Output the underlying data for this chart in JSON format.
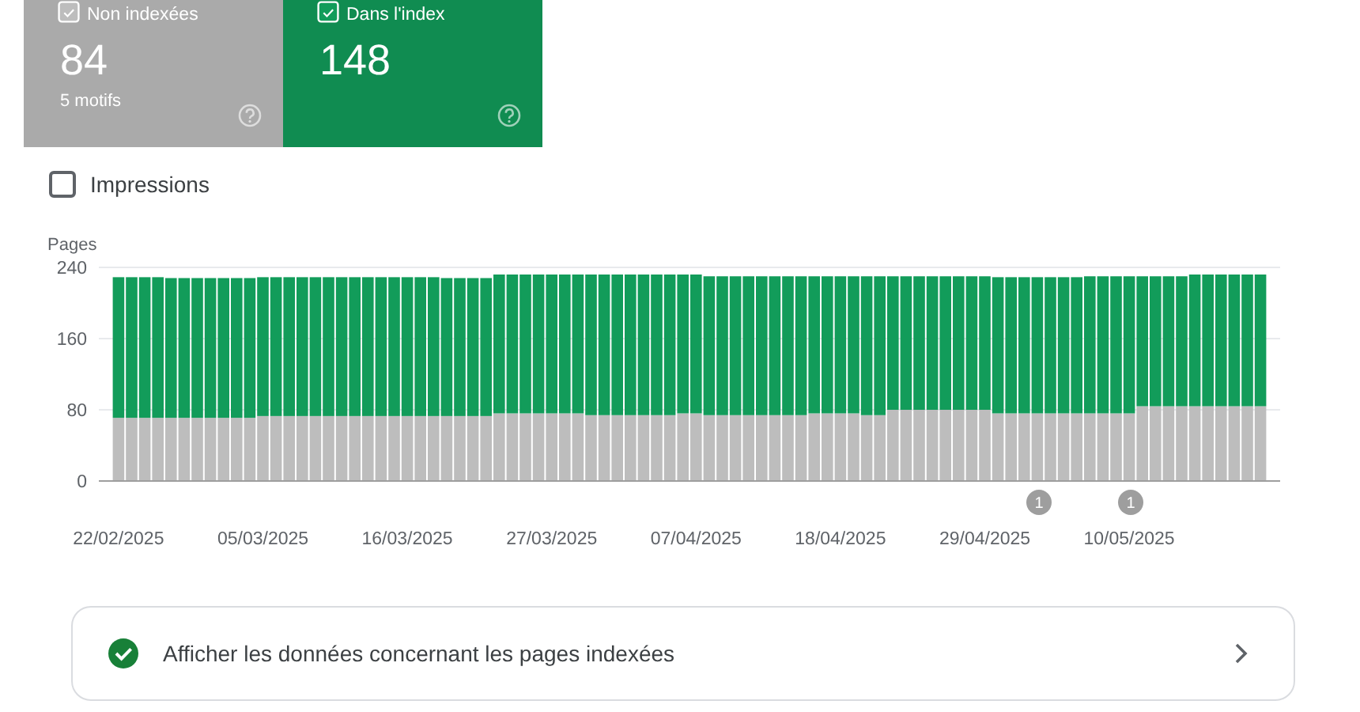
{
  "chart_data": {
    "type": "bar",
    "stacked": true,
    "ylabel": "Pages",
    "ylim": [
      0,
      240
    ],
    "yticks": [
      0,
      80,
      160,
      240
    ],
    "grid": "y",
    "legend": "top left",
    "x": [
      "2025-02-22",
      "2025-02-23",
      "2025-02-24",
      "2025-02-25",
      "2025-02-26",
      "2025-02-27",
      "2025-02-28",
      "2025-03-01",
      "2025-03-02",
      "2025-03-03",
      "2025-03-04",
      "2025-03-05",
      "2025-03-06",
      "2025-03-07",
      "2025-03-08",
      "2025-03-09",
      "2025-03-10",
      "2025-03-11",
      "2025-03-12",
      "2025-03-13",
      "2025-03-14",
      "2025-03-15",
      "2025-03-16",
      "2025-03-17",
      "2025-03-18",
      "2025-03-19",
      "2025-03-20",
      "2025-03-21",
      "2025-03-22",
      "2025-03-23",
      "2025-03-24",
      "2025-03-25",
      "2025-03-26",
      "2025-03-27",
      "2025-03-28",
      "2025-03-29",
      "2025-03-30",
      "2025-03-31",
      "2025-04-01",
      "2025-04-02",
      "2025-04-03",
      "2025-04-04",
      "2025-04-05",
      "2025-04-06",
      "2025-04-07",
      "2025-04-08",
      "2025-04-09",
      "2025-04-10",
      "2025-04-11",
      "2025-04-12",
      "2025-04-13",
      "2025-04-14",
      "2025-04-15",
      "2025-04-16",
      "2025-04-17",
      "2025-04-18",
      "2025-04-19",
      "2025-04-20",
      "2025-04-21",
      "2025-04-22",
      "2025-04-23",
      "2025-04-24",
      "2025-04-25",
      "2025-04-26",
      "2025-04-27",
      "2025-04-28",
      "2025-04-29",
      "2025-04-30",
      "2025-05-01",
      "2025-05-02",
      "2025-05-03",
      "2025-05-04",
      "2025-05-05",
      "2025-05-06",
      "2025-05-07",
      "2025-05-08",
      "2025-05-09",
      "2025-05-10",
      "2025-05-11",
      "2025-05-12",
      "2025-05-13",
      "2025-05-14",
      "2025-05-15",
      "2025-05-16",
      "2025-05-17",
      "2025-05-18",
      "2025-05-19",
      "2025-05-20"
    ],
    "xlim": [
      "2025-02-20T12:00",
      "2025-05-21T12:00"
    ],
    "xticks": [
      {
        "value": "2025-02-22",
        "label": "22/02/2025"
      },
      {
        "value": "2025-03-05",
        "label": "05/03/2025"
      },
      {
        "value": "2025-03-16",
        "label": "16/03/2025"
      },
      {
        "value": "2025-03-27",
        "label": "27/03/2025"
      },
      {
        "value": "2025-04-07",
        "label": "07/04/2025"
      },
      {
        "value": "2025-04-18",
        "label": "18/04/2025"
      },
      {
        "value": "2025-04-29",
        "label": "29/04/2025"
      },
      {
        "value": "2025-05-10",
        "label": "10/05/2025"
      }
    ],
    "series": [
      {
        "name": "Non indexées",
        "color": "#bdbdbd",
        "values": [
          71,
          71,
          71,
          71,
          71,
          71,
          71,
          71,
          71,
          71,
          71,
          73,
          73,
          73,
          73,
          73,
          73,
          73,
          73,
          73,
          73,
          73,
          73,
          73,
          73,
          73,
          73,
          73,
          73,
          76,
          76,
          76,
          76,
          76,
          76,
          76,
          74,
          74,
          74,
          74,
          74,
          74,
          74,
          76,
          76,
          74,
          74,
          74,
          74,
          74,
          74,
          74,
          74,
          76,
          76,
          76,
          76,
          74,
          74,
          80,
          80,
          80,
          80,
          80,
          80,
          80,
          80,
          76,
          76,
          76,
          76,
          76,
          76,
          76,
          76,
          76,
          76,
          76,
          84,
          84,
          84,
          84,
          84,
          84,
          84,
          84,
          84,
          84
        ]
      },
      {
        "name": "Dans l'index",
        "color": "#129c5a",
        "values": [
          158,
          158,
          158,
          158,
          157,
          157,
          157,
          157,
          157,
          157,
          157,
          156,
          156,
          156,
          156,
          156,
          156,
          156,
          156,
          156,
          156,
          156,
          156,
          156,
          156,
          155,
          155,
          155,
          155,
          156,
          156,
          156,
          156,
          156,
          156,
          156,
          158,
          158,
          158,
          158,
          158,
          158,
          158,
          156,
          156,
          156,
          156,
          156,
          156,
          156,
          156,
          156,
          156,
          154,
          154,
          154,
          154,
          156,
          156,
          150,
          150,
          150,
          150,
          150,
          150,
          150,
          150,
          153,
          153,
          153,
          153,
          153,
          153,
          153,
          154,
          154,
          154,
          154,
          146,
          146,
          146,
          146,
          148,
          148,
          148,
          148,
          148,
          148
        ]
      }
    ],
    "annotations": [
      "84",
      "5 motifs",
      "148",
      "Impressions",
      "1",
      "1",
      "Afficher les données concernant les pages indexées"
    ]
  }
}
